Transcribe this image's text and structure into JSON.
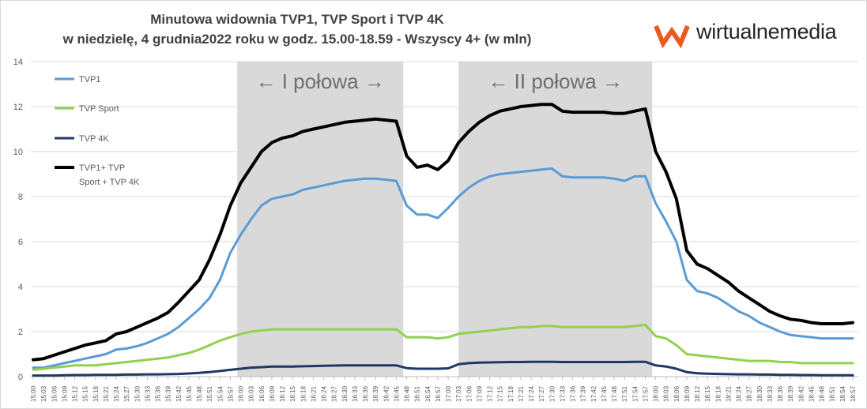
{
  "title_line1": "Minutowa widownia TVP1, TVP Sport i TVP 4K",
  "title_line2": "w niedzielę, 4 grudnia2022 roku w godz. 15.00-18.59 - Wszyscy 4+ (w mln)",
  "brand": {
    "name": "wirtualnemedia",
    "color": "#ea5a1e"
  },
  "halves": [
    {
      "label": "← I połowa →",
      "start": "15:59",
      "end": "16:47"
    },
    {
      "label": "← II połowa →",
      "start": "17:03",
      "end": "17:59"
    }
  ],
  "chart_data": {
    "type": "line",
    "title": "Minutowa widownia TVP1, TVP Sport i TVP 4K w niedzielę, 4 grudnia2022 roku w godz. 15.00-18.59 - Wszyscy 4+ (w mln)",
    "xlabel": "",
    "ylabel": "",
    "ylim": [
      0,
      14
    ],
    "yticks": [
      "0",
      "2",
      "4",
      "6",
      "8",
      "10",
      "12",
      "14"
    ],
    "xticks": [
      "15:00",
      "15:03",
      "15:06",
      "15:09",
      "15:12",
      "15:15",
      "15:18",
      "15:21",
      "15:24",
      "15:27",
      "15:30",
      "15:33",
      "15:36",
      "15:39",
      "15:42",
      "15:45",
      "15:48",
      "15:51",
      "15:54",
      "15:57",
      "16:00",
      "16:03",
      "16:06",
      "16:09",
      "16:12",
      "16:15",
      "16:18",
      "16:21",
      "16:24",
      "16:27",
      "16:30",
      "16:33",
      "16:36",
      "16:39",
      "16:42",
      "16:45",
      "16:48",
      "16:51",
      "16:54",
      "16:57",
      "17:00",
      "17:03",
      "17:06",
      "17:09",
      "17:12",
      "17:15",
      "17:18",
      "17:21",
      "17:24",
      "17:27",
      "17:30",
      "17:33",
      "17:36",
      "17:39",
      "17:42",
      "17:45",
      "17:48",
      "17:51",
      "17:54",
      "17:57",
      "18:00",
      "18:03",
      "18:06",
      "18:09",
      "18:12",
      "18:15",
      "18:18",
      "18:21",
      "18:24",
      "18:27",
      "18:30",
      "18:33",
      "18:36",
      "18:39",
      "18:42",
      "18:45",
      "18:48",
      "18:51",
      "18:54",
      "18:57"
    ],
    "grid": true,
    "legend_position": "top-left",
    "series": [
      {
        "name": "TVP1",
        "color": "#5b9bd5",
        "width": 3,
        "values": [
          0.4,
          0.4,
          0.5,
          0.6,
          0.7,
          0.8,
          0.9,
          1.0,
          1.2,
          1.25,
          1.35,
          1.5,
          1.7,
          1.9,
          2.2,
          2.6,
          3.0,
          3.5,
          4.3,
          5.5,
          6.3,
          7.0,
          7.6,
          7.9,
          8.0,
          8.1,
          8.3,
          8.4,
          8.5,
          8.6,
          8.7,
          8.75,
          8.8,
          8.8,
          8.75,
          8.7,
          7.6,
          7.2,
          7.2,
          7.05,
          7.5,
          8.0,
          8.4,
          8.7,
          8.9,
          9.0,
          9.05,
          9.1,
          9.15,
          9.2,
          9.25,
          8.9,
          8.85,
          8.85,
          8.85,
          8.85,
          8.8,
          8.7,
          8.9,
          8.9,
          7.7,
          6.9,
          6.0,
          4.3,
          3.8,
          3.7,
          3.5,
          3.2,
          2.9,
          2.7,
          2.4,
          2.2,
          2.0,
          1.85,
          1.8,
          1.75,
          1.7,
          1.7,
          1.7,
          1.7
        ]
      },
      {
        "name": "TVP Sport",
        "color": "#92d050",
        "width": 3,
        "values": [
          0.3,
          0.35,
          0.4,
          0.45,
          0.5,
          0.5,
          0.5,
          0.55,
          0.6,
          0.65,
          0.7,
          0.75,
          0.8,
          0.85,
          0.95,
          1.05,
          1.2,
          1.4,
          1.6,
          1.75,
          1.9,
          2.0,
          2.05,
          2.1,
          2.1,
          2.1,
          2.1,
          2.1,
          2.1,
          2.1,
          2.1,
          2.1,
          2.1,
          2.1,
          2.1,
          2.1,
          1.75,
          1.75,
          1.75,
          1.7,
          1.75,
          1.9,
          1.95,
          2.0,
          2.05,
          2.1,
          2.15,
          2.2,
          2.2,
          2.25,
          2.25,
          2.2,
          2.2,
          2.2,
          2.2,
          2.2,
          2.2,
          2.2,
          2.25,
          2.3,
          1.8,
          1.7,
          1.4,
          1.0,
          0.95,
          0.9,
          0.85,
          0.8,
          0.75,
          0.7,
          0.7,
          0.7,
          0.65,
          0.65,
          0.6,
          0.6,
          0.6,
          0.6,
          0.6,
          0.6
        ]
      },
      {
        "name": "TVP 4K",
        "color": "#1f3864",
        "width": 3,
        "values": [
          0.05,
          0.05,
          0.05,
          0.06,
          0.07,
          0.07,
          0.08,
          0.08,
          0.08,
          0.09,
          0.09,
          0.1,
          0.1,
          0.11,
          0.12,
          0.14,
          0.17,
          0.2,
          0.25,
          0.3,
          0.35,
          0.4,
          0.42,
          0.45,
          0.45,
          0.45,
          0.46,
          0.47,
          0.48,
          0.49,
          0.5,
          0.5,
          0.5,
          0.5,
          0.5,
          0.5,
          0.38,
          0.35,
          0.35,
          0.35,
          0.37,
          0.55,
          0.6,
          0.62,
          0.63,
          0.64,
          0.65,
          0.65,
          0.66,
          0.66,
          0.66,
          0.65,
          0.65,
          0.65,
          0.65,
          0.65,
          0.65,
          0.65,
          0.66,
          0.66,
          0.5,
          0.45,
          0.35,
          0.2,
          0.15,
          0.13,
          0.12,
          0.11,
          0.1,
          0.1,
          0.09,
          0.09,
          0.08,
          0.08,
          0.07,
          0.07,
          0.06,
          0.06,
          0.06,
          0.06
        ]
      },
      {
        "name": "TVP1+ TVP Sport + TVP 4K",
        "legend_lines": [
          "TVP1+ TVP",
          "Sport + TVP 4K"
        ],
        "color": "#000000",
        "width": 4,
        "values": [
          0.75,
          0.8,
          0.95,
          1.1,
          1.25,
          1.4,
          1.5,
          1.6,
          1.9,
          2.0,
          2.2,
          2.4,
          2.6,
          2.85,
          3.3,
          3.8,
          4.3,
          5.2,
          6.3,
          7.6,
          8.6,
          9.3,
          10.0,
          10.4,
          10.6,
          10.7,
          10.9,
          11.0,
          11.1,
          11.2,
          11.3,
          11.35,
          11.4,
          11.45,
          11.4,
          11.35,
          9.8,
          9.3,
          9.4,
          9.2,
          9.6,
          10.4,
          10.9,
          11.3,
          11.6,
          11.8,
          11.9,
          12.0,
          12.05,
          12.1,
          12.1,
          11.8,
          11.75,
          11.75,
          11.75,
          11.75,
          11.7,
          11.7,
          11.8,
          11.9,
          10.0,
          9.1,
          7.9,
          5.6,
          5.0,
          4.8,
          4.5,
          4.2,
          3.8,
          3.5,
          3.2,
          2.9,
          2.7,
          2.55,
          2.5,
          2.4,
          2.35,
          2.35,
          2.35,
          2.4
        ]
      }
    ]
  }
}
